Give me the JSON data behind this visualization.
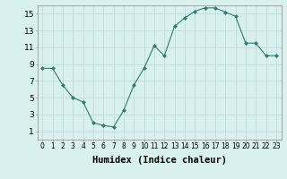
{
  "x": [
    0,
    1,
    2,
    3,
    4,
    5,
    6,
    7,
    8,
    9,
    10,
    11,
    12,
    13,
    14,
    15,
    16,
    17,
    18,
    19,
    20,
    21,
    22,
    23
  ],
  "y": [
    8.5,
    8.5,
    6.5,
    5.0,
    4.5,
    2.0,
    1.7,
    1.5,
    3.5,
    6.5,
    8.5,
    11.2,
    10.0,
    13.5,
    14.5,
    15.3,
    15.7,
    15.7,
    15.2,
    14.7,
    11.5,
    11.5,
    10.0,
    10.0
  ],
  "xlabel": "Humidex (Indice chaleur)",
  "ylim": [
    0,
    16
  ],
  "xlim": [
    -0.5,
    23.5
  ],
  "yticks": [
    1,
    3,
    5,
    7,
    9,
    11,
    13,
    15
  ],
  "xticks": [
    0,
    1,
    2,
    3,
    4,
    5,
    6,
    7,
    8,
    9,
    10,
    11,
    12,
    13,
    14,
    15,
    16,
    17,
    18,
    19,
    20,
    21,
    22,
    23
  ],
  "line_color": "#2e7d6e",
  "marker": "D",
  "marker_size": 2,
  "bg_color": "#d8f0ee",
  "grid_color": "#c0dcd8",
  "xlabel_fontsize": 7.5,
  "tick_fontsize": 5.5,
  "ytick_fontsize": 6.5
}
